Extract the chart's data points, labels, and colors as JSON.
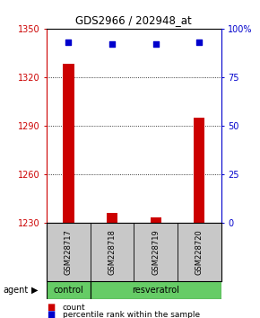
{
  "title": "GDS2966 / 202948_at",
  "samples": [
    "GSM228717",
    "GSM228718",
    "GSM228719",
    "GSM228720"
  ],
  "count_values": [
    1328,
    1236,
    1233,
    1295
  ],
  "percentile_values": [
    93,
    92,
    92,
    93
  ],
  "ylim_left": [
    1230,
    1350
  ],
  "ylim_right": [
    0,
    100
  ],
  "yticks_left": [
    1230,
    1260,
    1290,
    1320,
    1350
  ],
  "yticks_right": [
    0,
    25,
    50,
    75,
    100
  ],
  "ytick_labels_right": [
    "0",
    "25",
    "50",
    "75",
    "100%"
  ],
  "bar_color": "#cc0000",
  "dot_color": "#0000cc",
  "group_labels": [
    "control",
    "resveratrol"
  ],
  "group_sample_counts": [
    1,
    3
  ],
  "group_color": "#66cc66",
  "sample_box_color": "#c8c8c8",
  "left_axis_color": "#cc0000",
  "right_axis_color": "#0000cc",
  "legend_count_label": "count",
  "legend_pct_label": "percentile rank within the sample",
  "bar_width": 0.25,
  "figure_width": 2.9,
  "figure_height": 3.54,
  "dpi": 100
}
